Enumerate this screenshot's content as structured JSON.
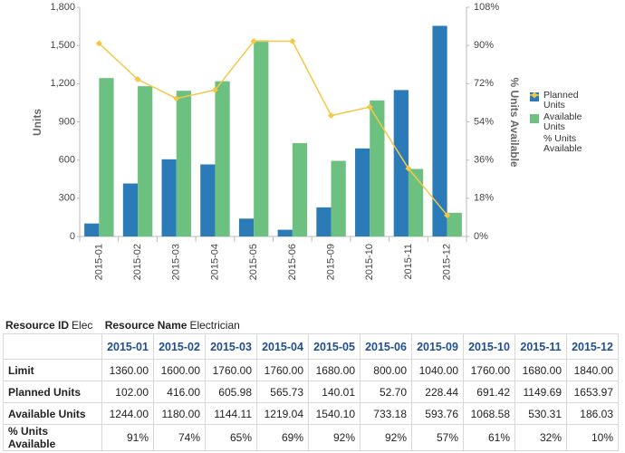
{
  "chart_data": {
    "type": "bar",
    "y_label": "Units",
    "y2_label": "% Units Available",
    "categories": [
      "2015-01",
      "2015-02",
      "2015-03",
      "2015-04",
      "2015-05",
      "2015-06",
      "2015-09",
      "2015-10",
      "2015-11",
      "2015-12"
    ],
    "series": [
      {
        "name": "Planned Units",
        "type": "bar",
        "color": "#2b7bb9",
        "values": [
          102.0,
          416.0,
          605.98,
          565.73,
          140.01,
          52.7,
          228.44,
          691.42,
          1149.69,
          1653.97
        ]
      },
      {
        "name": "Available Units",
        "type": "bar",
        "color": "#6cc080",
        "values": [
          1244.0,
          1180.0,
          1144.11,
          1219.04,
          1540.1,
          733.18,
          593.76,
          1068.58,
          530.31,
          186.03
        ]
      },
      {
        "name": "% Units Available",
        "type": "line",
        "axis": "y2",
        "color": "#f4c845",
        "values": [
          91,
          74,
          65,
          69,
          92,
          92,
          57,
          61,
          32,
          10
        ]
      }
    ],
    "ylim": [
      0,
      1800
    ],
    "yticks": [
      0,
      300,
      600,
      900,
      {
        "value": 1200,
        "label": "1,200"
      },
      {
        "value": 1500,
        "label": "1,500"
      },
      {
        "value": 1800,
        "label": "1,800"
      }
    ],
    "y2lim": [
      0,
      108
    ],
    "y2ticks": [
      {
        "value": 0,
        "label": "0%"
      },
      {
        "value": 18,
        "label": "18%"
      },
      {
        "value": 36,
        "label": "36%"
      },
      {
        "value": 54,
        "label": "54%"
      },
      {
        "value": 72,
        "label": "72%"
      },
      {
        "value": 90,
        "label": "90%"
      },
      {
        "value": 108,
        "label": "108%"
      }
    ],
    "grid": false,
    "legend": "right"
  },
  "resource": {
    "id_label": "Resource ID",
    "id": "Elec",
    "name_label": "Resource Name",
    "name": "Electrician"
  },
  "table": {
    "rows": [
      [
        "Limit",
        "1360.00",
        "1600.00",
        "1760.00",
        "1760.00",
        "1680.00",
        "800.00",
        "1040.00",
        "1760.00",
        "1680.00",
        "1840.00"
      ],
      [
        "Planned Units",
        "102.00",
        "416.00",
        "605.98",
        "565.73",
        "140.01",
        "52.70",
        "228.44",
        "691.42",
        "1149.69",
        "1653.97"
      ],
      [
        "Available Units",
        "1244.00",
        "1180.00",
        "1144.11",
        "1219.04",
        "1540.10",
        "733.18",
        "593.76",
        "1068.58",
        "530.31",
        "186.03"
      ],
      [
        "% Units Available",
        "91%",
        "74%",
        "65%",
        "69%",
        "92%",
        "92%",
        "57%",
        "61%",
        "32%",
        "10%"
      ]
    ]
  }
}
